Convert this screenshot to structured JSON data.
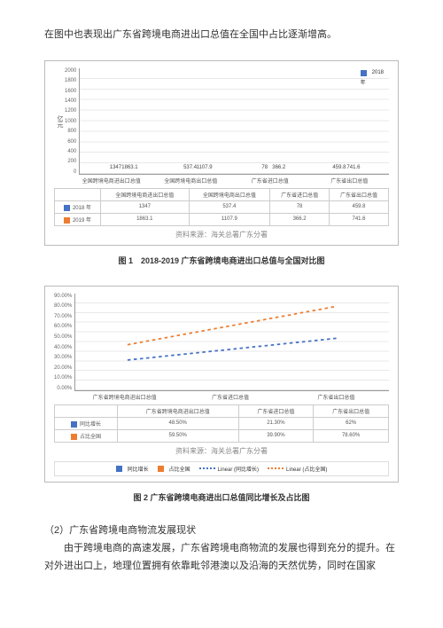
{
  "intro": "在图中也表现出广东省跨境电商进出口总值在全国中占比逐渐增高。",
  "chart1": {
    "y_label": "亿元",
    "y_ticks": [
      "2000",
      "1800",
      "1600",
      "1400",
      "1200",
      "1000",
      "800",
      "600",
      "400",
      "200",
      "0"
    ],
    "y_max": 2000,
    "colors": {
      "series_2018": "#4472c4",
      "series_2019": "#ed7d31"
    },
    "categories": [
      "全国跨境电商进出口总值",
      "全国跨境电商出口总值",
      "广东省进口总值",
      "广东省出口总值"
    ],
    "series": {
      "s2018": {
        "label": "2018 年",
        "values": [
          1347,
          537.4,
          78,
          459.8
        ]
      },
      "s2019": {
        "label": "2019 年",
        "values": [
          1863.1,
          1107.9,
          366.2,
          741.6
        ]
      }
    },
    "top_legend_labels": [
      "2018",
      "年"
    ],
    "source": "资料来源：海关总署广东分署",
    "caption": "图 1　2018-2019 广东省跨境电商进出口总值与全国对比图"
  },
  "chart2": {
    "y_ticks": [
      "90.00%",
      "80.00%",
      "70.00%",
      "60.00%",
      "50.00%",
      "40.00%",
      "30.00%",
      "20.00%",
      "10.00%",
      "0.00%"
    ],
    "y_max": 90,
    "colors": {
      "growth": "#4472c4",
      "share": "#ed7d31",
      "line_growth": "#4472c4",
      "line_share": "#ed7d31"
    },
    "categories": [
      "广东省跨境电商进出口总值",
      "广东省进口总值",
      "广东省出口总值"
    ],
    "series": {
      "growth": {
        "label": "同比增长",
        "values": [
          48.5,
          21.3,
          62
        ],
        "disp": [
          "48.50%",
          "21.30%",
          "62%"
        ]
      },
      "share": {
        "label": "占比全国",
        "values": [
          59.5,
          39.9,
          78.6
        ],
        "disp": [
          "59.50%",
          "39.90%",
          "78.60%"
        ]
      }
    },
    "legend": {
      "l1": "同比增长",
      "l2": "占比全国",
      "l3": "Linear (同比增长)",
      "l4": "Linear (占比全国)"
    },
    "source": "资料来源：海关总署广东分署",
    "caption": "图 2 广东省跨境电商进出口总值同比增长及占比图"
  },
  "section": {
    "title": "（2）广东省跨境电商物流发展现状",
    "body": "由于跨境电商的高速发展，广东省跨境电商物流的发展也得到充分的提升。在对外进出口上，地理位置拥有依靠毗邻港澳以及沿海的天然优势，同时在国家"
  }
}
